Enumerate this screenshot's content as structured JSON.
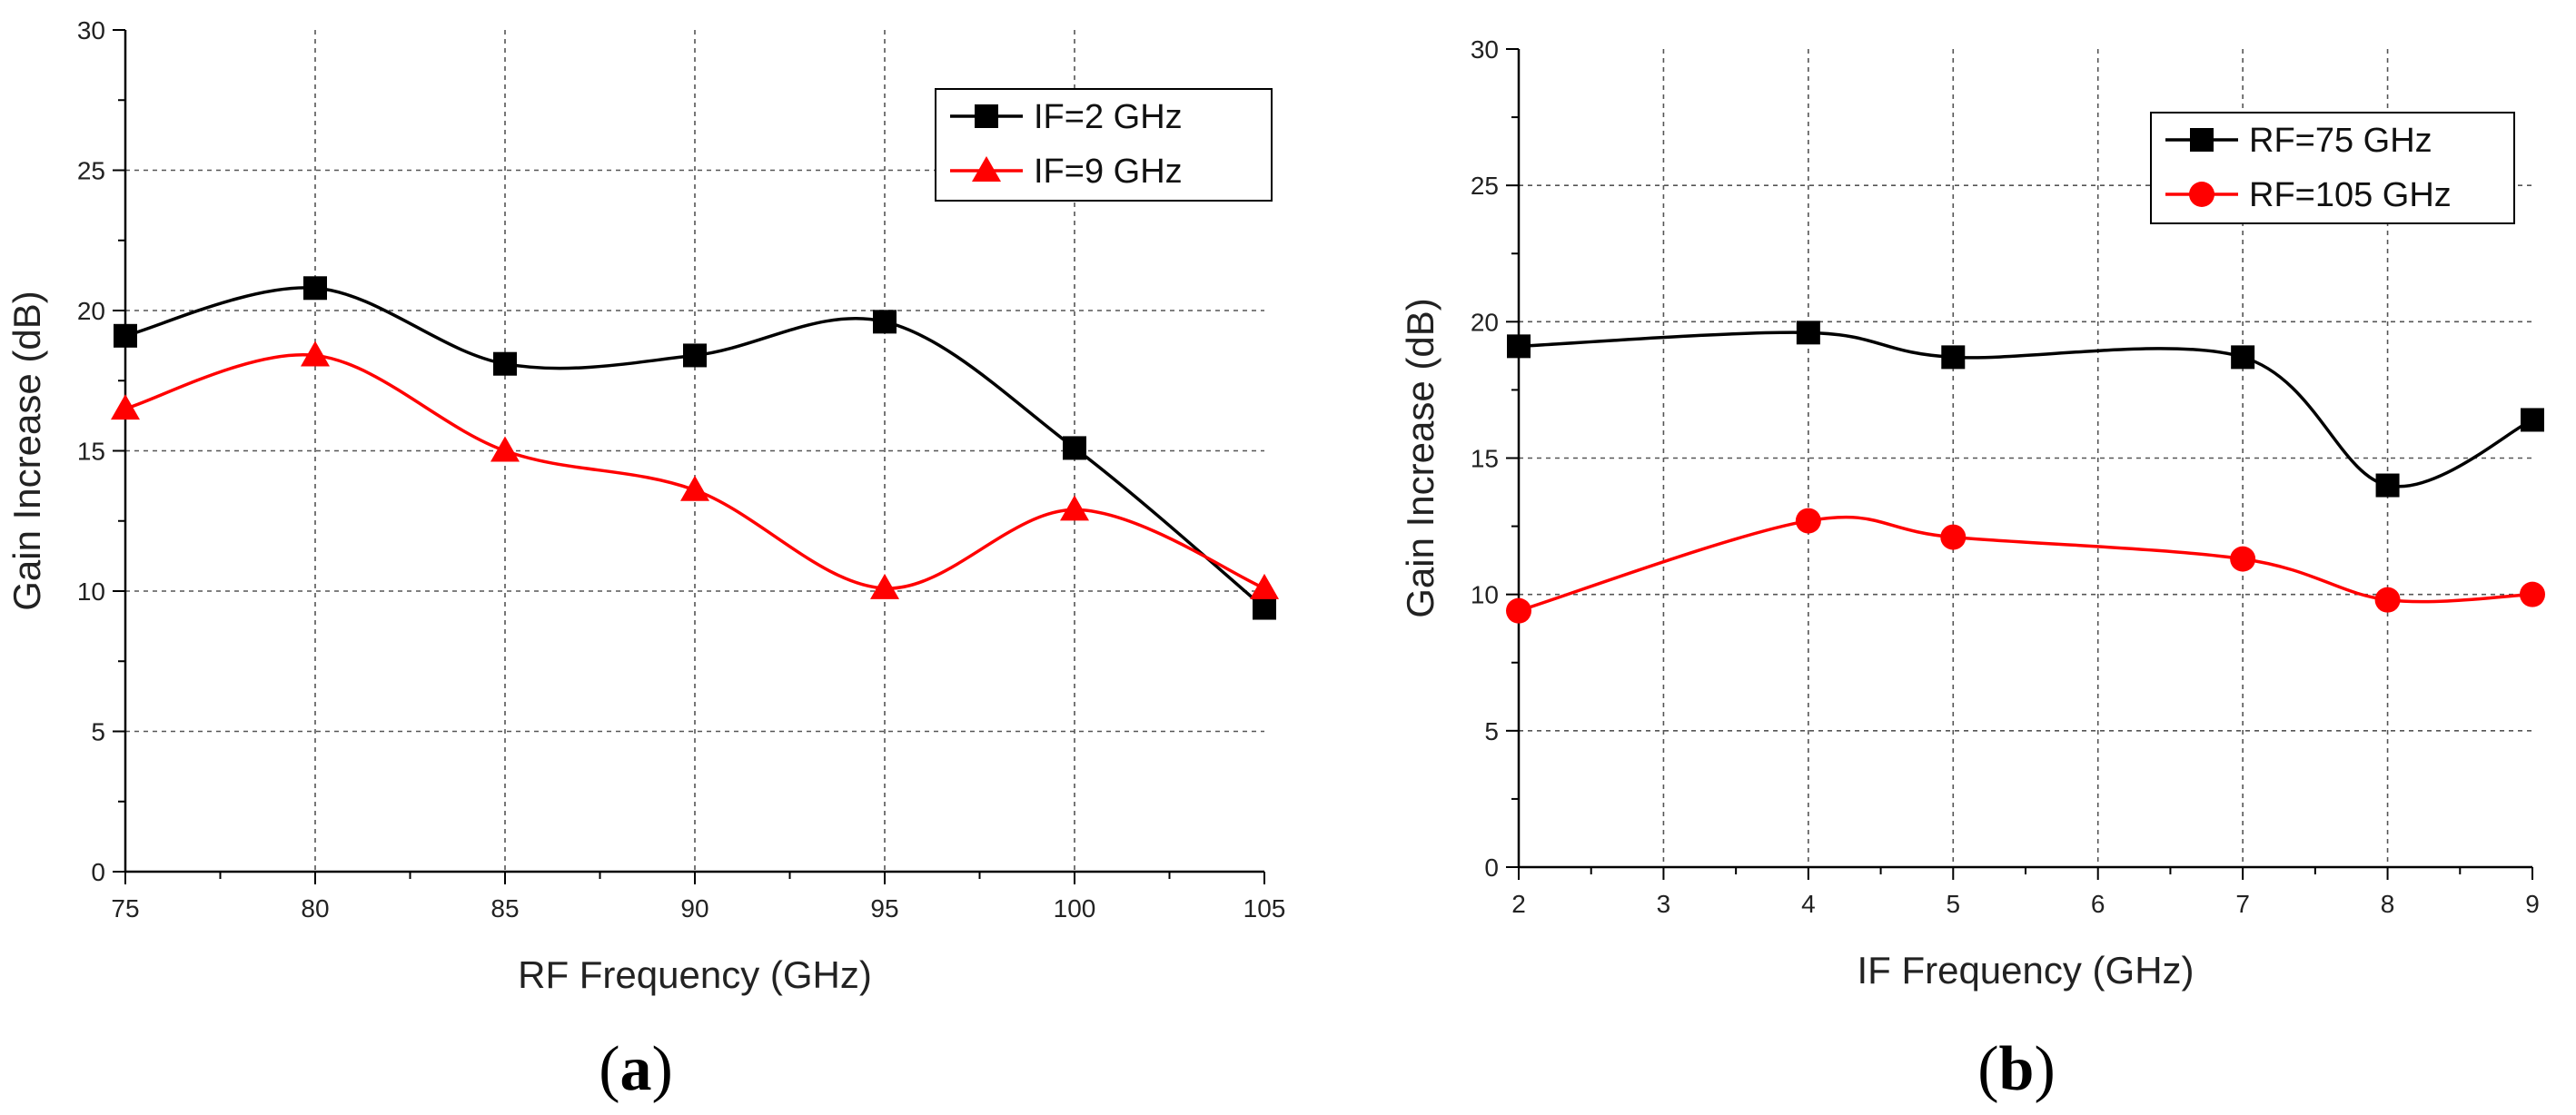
{
  "chart_data": [
    {
      "type": "line",
      "panel_label": "(a)",
      "panel_open": "(",
      "panel_letter": "a",
      "panel_close": ")",
      "xlabel": "RF Frequency (GHz)",
      "ylabel": "Gain Increase (dB)",
      "xlim": [
        75,
        105
      ],
      "ylim": [
        0,
        30
      ],
      "xticks": [
        75,
        80,
        85,
        90,
        95,
        100,
        105
      ],
      "yticks": [
        0,
        5,
        10,
        15,
        20,
        25,
        30
      ],
      "grid": true,
      "legend_position": "top-right",
      "series": [
        {
          "name": "IF=2 GHz",
          "color": "#000000",
          "marker": "square",
          "x": [
            75,
            80,
            85,
            90,
            95,
            100,
            105
          ],
          "y": [
            19.1,
            20.8,
            18.1,
            18.4,
            19.6,
            15.1,
            9.4
          ]
        },
        {
          "name": "IF=9 GHz",
          "color": "#ff0000",
          "marker": "triangle",
          "x": [
            75,
            80,
            85,
            90,
            95,
            100,
            105
          ],
          "y": [
            16.5,
            18.4,
            15.0,
            13.6,
            10.1,
            12.9,
            10.1
          ]
        }
      ]
    },
    {
      "type": "line",
      "panel_label": "(b)",
      "panel_open": "(",
      "panel_letter": "b",
      "panel_close": ")",
      "xlabel": "IF Frequency (GHz)",
      "ylabel": "Gain Increase (dB)",
      "xlim": [
        2,
        9
      ],
      "ylim": [
        0,
        30
      ],
      "xticks": [
        2,
        3,
        4,
        5,
        6,
        7,
        8,
        9
      ],
      "yticks": [
        0,
        5,
        10,
        15,
        20,
        25,
        30
      ],
      "grid": true,
      "legend_position": "top-right",
      "series": [
        {
          "name": "RF=75 GHz",
          "color": "#000000",
          "marker": "square",
          "x": [
            2,
            4,
            5,
            7,
            8,
            9
          ],
          "y": [
            19.1,
            19.6,
            18.7,
            18.7,
            14.0,
            16.4
          ]
        },
        {
          "name": "RF=105 GHz",
          "color": "#ff0000",
          "marker": "circle",
          "x": [
            2,
            4,
            5,
            7,
            8,
            9
          ],
          "y": [
            9.4,
            12.7,
            12.1,
            11.3,
            9.8,
            10.0
          ]
        }
      ]
    }
  ]
}
